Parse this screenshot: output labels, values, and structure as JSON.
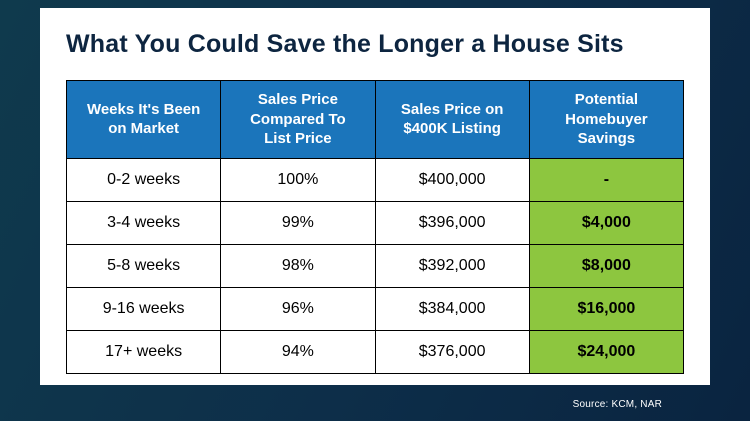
{
  "title": "What You Could Save the Longer a House Sits",
  "source": "Source: KCM, NAR",
  "colors": {
    "header_blue": "#1b75bb",
    "savings_green": "#8dc63f",
    "title_navy": "#0d2540",
    "background_navy": "#0d2e49"
  },
  "chart_data": {
    "type": "table",
    "title": "What You Could Save the Longer a House Sits",
    "columns": [
      "Weeks It's Been on Market",
      "Sales Price Compared To List Price",
      "Sales Price on $400K Listing",
      "Potential Homebuyer Savings"
    ],
    "rows": [
      [
        "0-2 weeks",
        "100%",
        "$400,000",
        "-"
      ],
      [
        "3-4 weeks",
        "99%",
        "$396,000",
        "$4,000"
      ],
      [
        "5-8 weeks",
        "98%",
        "$392,000",
        "$8,000"
      ],
      [
        "9-16 weeks",
        "96%",
        "$384,000",
        "$16,000"
      ],
      [
        "17+ weeks",
        "94%",
        "$376,000",
        "$24,000"
      ]
    ]
  }
}
